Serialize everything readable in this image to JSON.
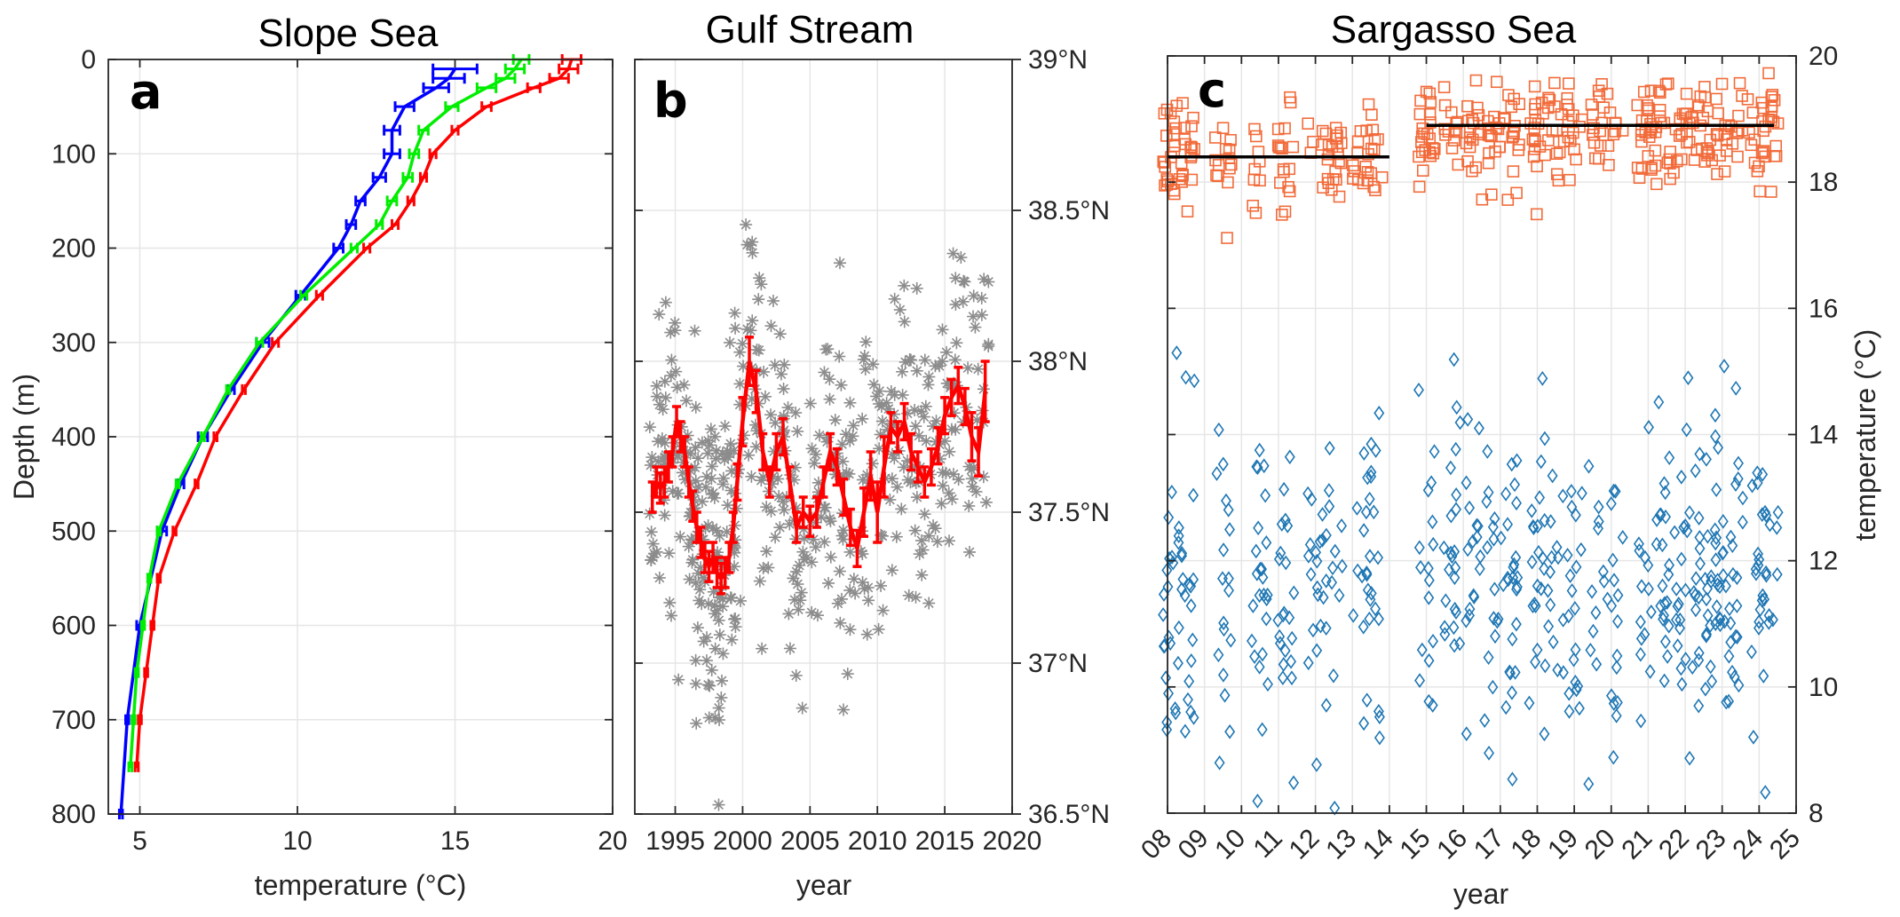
{
  "chart_data": [
    {
      "type": "line",
      "title": "Slope Sea",
      "panel_label": "a",
      "xlabel": "temperature (°C)",
      "ylabel": "Depth (m)",
      "xlim": [
        4,
        20
      ],
      "ylim": [
        800,
        0
      ],
      "xticks": [
        "5",
        "10",
        "15",
        "20"
      ],
      "yticks": [
        "0",
        "100",
        "200",
        "300",
        "400",
        "500",
        "600",
        "700",
        "800"
      ],
      "grid": true,
      "series": [
        {
          "color": "#0000ff",
          "depth": [
            10,
            20,
            30,
            50,
            75,
            100,
            125,
            150,
            175,
            200,
            250,
            300,
            350,
            400,
            450,
            500,
            600,
            700,
            800
          ],
          "temperature": [
            15.0,
            14.8,
            14.4,
            13.4,
            13.0,
            13.0,
            12.6,
            12.0,
            11.7,
            11.3,
            10.1,
            8.9,
            7.9,
            7.0,
            6.3,
            5.7,
            5.0,
            4.6,
            4.4
          ],
          "err": [
            0.7,
            0.5,
            0.4,
            0.3,
            0.25,
            0.25,
            0.2,
            0.15,
            0.15,
            0.15,
            0.15,
            0.2,
            0.1,
            0.15,
            0.1,
            0.15,
            0.1,
            0.05,
            0.05
          ]
        },
        {
          "color": "#00ee00",
          "depth": [
            0,
            10,
            20,
            30,
            50,
            75,
            100,
            125,
            150,
            175,
            200,
            250,
            300,
            350,
            400,
            450,
            500,
            550,
            600,
            650,
            700,
            750
          ],
          "temperature": [
            17.1,
            16.9,
            16.6,
            16.0,
            14.9,
            14.0,
            13.7,
            13.5,
            13.0,
            12.6,
            11.8,
            10.2,
            8.8,
            7.8,
            7.0,
            6.2,
            5.6,
            5.3,
            5.1,
            4.9,
            4.8,
            4.7
          ],
          "err": [
            0.25,
            0.3,
            0.3,
            0.3,
            0.2,
            0.15,
            0.15,
            0.15,
            0.15,
            0.1,
            0.1,
            0.1,
            0.1,
            0.05,
            0.05,
            0.05,
            0.05,
            0.05,
            0.05,
            0.05,
            0.05,
            0.05
          ]
        },
        {
          "color": "#ff0000",
          "depth": [
            0,
            10,
            20,
            30,
            50,
            75,
            100,
            125,
            150,
            175,
            200,
            250,
            300,
            350,
            400,
            450,
            500,
            550,
            600,
            650,
            700,
            750
          ],
          "temperature": [
            18.7,
            18.6,
            18.3,
            17.5,
            16.0,
            15.0,
            14.3,
            14.0,
            13.6,
            13.1,
            12.2,
            10.7,
            9.3,
            8.3,
            7.4,
            6.8,
            6.1,
            5.6,
            5.4,
            5.2,
            5.0,
            4.9
          ],
          "err": [
            0.3,
            0.3,
            0.3,
            0.2,
            0.15,
            0.1,
            0.1,
            0.1,
            0.1,
            0.1,
            0.1,
            0.1,
            0.1,
            0.05,
            0.05,
            0.05,
            0.05,
            0.05,
            0.05,
            0.05,
            0.05,
            0.05
          ]
        }
      ]
    },
    {
      "type": "scatter",
      "title": "Gulf Stream",
      "panel_label": "b",
      "xlabel": "year",
      "ylabel": "",
      "xlim": [
        1992,
        2020
      ],
      "ylim": [
        36.5,
        39.0
      ],
      "xticks": [
        "1995",
        "2000",
        "2005",
        "2010",
        "2015",
        "2020"
      ],
      "yticks_right": [
        "36.5°N",
        "37°N",
        "37.5°N",
        "38°N",
        "38.5°N",
        "39°N"
      ],
      "grid": true,
      "scatter_color": "#8c8c8c",
      "mean_color": "#ff0000",
      "scatter_generation": {
        "count": 520,
        "center_lat": 37.65,
        "spread_lat": 0.28,
        "note_values": "individual positions approximated"
      },
      "mean_series": {
        "x": [
          1993.3,
          1993.6,
          1993.9,
          1994.2,
          1994.5,
          1994.8,
          1995.1,
          1995.4,
          1995.7,
          1996.0,
          1996.3,
          1996.6,
          1996.9,
          1997.2,
          1997.5,
          1997.8,
          1998.1,
          1998.4,
          1998.7,
          1999.0,
          1999.3,
          1999.6,
          2000.0,
          2000.5,
          2001.0,
          2001.5,
          2002.0,
          2002.5,
          2003.0,
          2003.5,
          2004.0,
          2004.5,
          2005.0,
          2005.5,
          2006.0,
          2006.5,
          2007.0,
          2007.5,
          2008.0,
          2008.5,
          2009.0,
          2009.5,
          2010.0,
          2010.5,
          2011.0,
          2011.5,
          2012.0,
          2012.5,
          2013.0,
          2013.5,
          2014.0,
          2014.5,
          2015.0,
          2015.5,
          2016.0,
          2016.5,
          2017.0,
          2017.5,
          2018.0
        ],
        "y": [
          37.55,
          37.6,
          37.58,
          37.6,
          37.65,
          37.7,
          37.8,
          37.75,
          37.7,
          37.6,
          37.52,
          37.45,
          37.4,
          37.35,
          37.32,
          37.35,
          37.3,
          37.28,
          37.3,
          37.35,
          37.45,
          37.6,
          37.8,
          38.0,
          37.9,
          37.7,
          37.6,
          37.7,
          37.75,
          37.6,
          37.45,
          37.5,
          37.47,
          37.5,
          37.6,
          37.7,
          37.65,
          37.55,
          37.45,
          37.38,
          37.5,
          37.62,
          37.5,
          37.65,
          37.78,
          37.75,
          37.8,
          37.7,
          37.65,
          37.6,
          37.65,
          37.72,
          37.82,
          37.88,
          37.92,
          37.85,
          37.75,
          37.7,
          37.9
        ],
        "err": [
          0.05,
          0.05,
          0.05,
          0.05,
          0.05,
          0.05,
          0.05,
          0.05,
          0.05,
          0.05,
          0.05,
          0.05,
          0.05,
          0.05,
          0.05,
          0.05,
          0.05,
          0.05,
          0.05,
          0.05,
          0.05,
          0.06,
          0.08,
          0.08,
          0.07,
          0.06,
          0.05,
          0.06,
          0.06,
          0.05,
          0.05,
          0.05,
          0.05,
          0.05,
          0.05,
          0.06,
          0.06,
          0.06,
          0.06,
          0.06,
          0.08,
          0.08,
          0.1,
          0.1,
          0.05,
          0.05,
          0.06,
          0.06,
          0.05,
          0.05,
          0.06,
          0.06,
          0.06,
          0.06,
          0.06,
          0.06,
          0.08,
          0.08,
          0.1
        ]
      }
    },
    {
      "type": "scatter",
      "title": "Sargasso Sea",
      "panel_label": "c",
      "xlabel": "year",
      "ylabel": "temperature (°C)",
      "xlim": [
        8,
        25
      ],
      "ylim": [
        8,
        20
      ],
      "xticks": [
        "08",
        "09",
        "10",
        "11",
        "12",
        "13",
        "14",
        "15",
        "16",
        "17",
        "18",
        "19",
        "20",
        "21",
        "22",
        "23",
        "24",
        "25"
      ],
      "yticks_right": [
        "8",
        "10",
        "12",
        "14",
        "16",
        "18",
        "20"
      ],
      "grid": true,
      "series": [
        {
          "marker": "square",
          "color": "#f26b3a",
          "count": 420,
          "center": 18.8,
          "spread": 0.45,
          "note_values": "individual points approximated"
        },
        {
          "marker": "diamond",
          "color": "#1f77b4",
          "count": 520,
          "center": 11.7,
          "spread": 1.3,
          "note_values": "individual points approximated"
        }
      ],
      "mean_lines": [
        {
          "x": [
            8.0,
            14.0
          ],
          "y": 18.4,
          "color": "#000000"
        },
        {
          "x": [
            15.0,
            24.4
          ],
          "y": 18.9,
          "color": "#000000"
        }
      ]
    }
  ]
}
